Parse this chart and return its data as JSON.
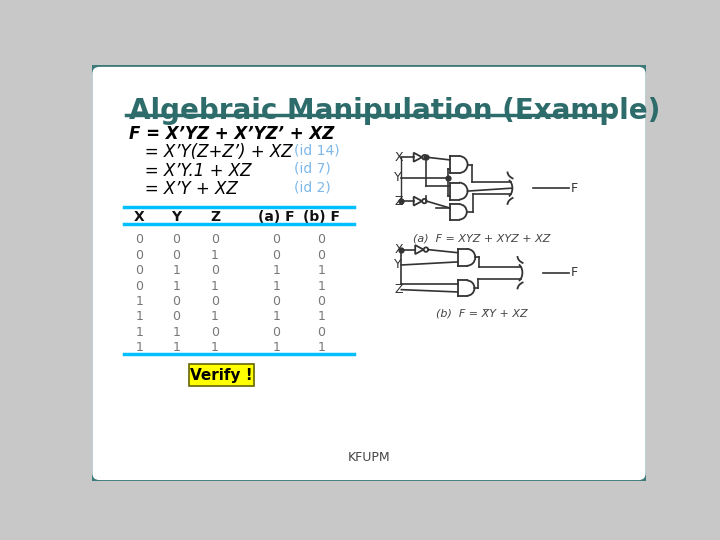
{
  "title": "Algebraic Manipulation (Example)",
  "title_color": "#2E6B6B",
  "border_color": "#3D7A7A",
  "formula_lines": [
    "F = X’YZ + X’YZ’ + XZ",
    "   = X’Y(Z+Z’) + XZ",
    "   = X’Y.1 + XZ",
    "   = X’Y + XZ"
  ],
  "id_labels": [
    "",
    "(id 14)",
    "(id 7)",
    "(id 2)"
  ],
  "id_color": "#7EB8E8",
  "table_headers": [
    "X",
    "Y",
    "Z",
    "(a) F",
    "(b) F"
  ],
  "table_data": [
    [
      0,
      0,
      0,
      0,
      0
    ],
    [
      0,
      0,
      1,
      0,
      0
    ],
    [
      0,
      1,
      0,
      1,
      1
    ],
    [
      0,
      1,
      1,
      1,
      1
    ],
    [
      1,
      0,
      0,
      0,
      0
    ],
    [
      1,
      0,
      1,
      1,
      1
    ],
    [
      1,
      1,
      0,
      0,
      0
    ],
    [
      1,
      1,
      1,
      1,
      1
    ]
  ],
  "verify_text": "Verify !",
  "verify_bg": "#FFFF00",
  "footer": "KFUPM",
  "table_line_color": "#00BFFF",
  "formula_color": "#000000",
  "caption_a": "(a)  F = XYZ + XYZ + XZ",
  "caption_b": "(b)  F = X̅Y + XZ"
}
